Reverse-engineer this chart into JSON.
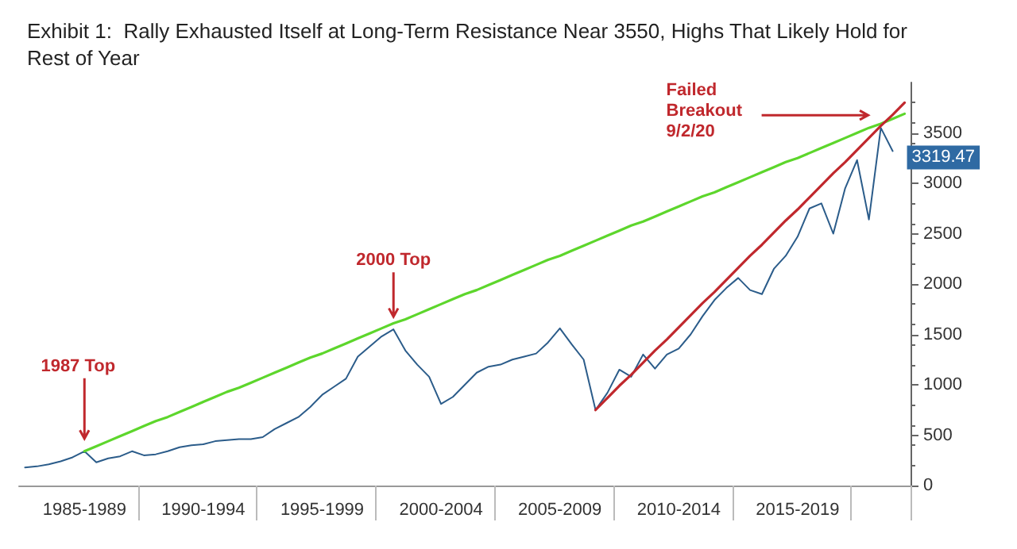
{
  "chart_data": {
    "type": "line",
    "title": "Exhibit 1:  Rally Exhausted Itself at Long-Term Resistance Near 3550, Highs That Likely Hold for Rest of Year",
    "categories": [
      null,
      null,
      null,
      null,
      null,
      "1985-1989",
      null,
      null,
      null,
      null,
      null,
      null,
      null,
      null,
      null,
      "1990-1994",
      null,
      null,
      null,
      null,
      null,
      null,
      null,
      null,
      null,
      "1995-1999",
      null,
      null,
      null,
      null,
      null,
      null,
      null,
      null,
      null,
      "2000-2004",
      null,
      null,
      null,
      null,
      null,
      null,
      null,
      null,
      null,
      "2005-2009",
      null,
      null,
      null,
      null,
      null,
      null,
      null,
      null,
      null,
      "2010-2014",
      null,
      null,
      null,
      null,
      null,
      null,
      null,
      null,
      null,
      "2015-2019",
      null,
      null,
      null,
      null,
      null,
      null,
      null,
      null,
      null
    ],
    "series": [
      {
        "color": "#2b5c8a",
        "values": [
          180,
          190,
          210,
          240,
          280,
          340,
          230,
          270,
          290,
          340,
          300,
          310,
          340,
          380,
          400,
          410,
          440,
          450,
          460,
          460,
          480,
          560,
          620,
          680,
          780,
          900,
          980,
          1060,
          1280,
          1380,
          1480,
          1550,
          1340,
          1200,
          1080,
          810,
          880,
          1000,
          1120,
          1180,
          1200,
          1250,
          1280,
          1310,
          1420,
          1560,
          1400,
          1250,
          750,
          920,
          1150,
          1080,
          1300,
          1160,
          1300,
          1360,
          1500,
          1680,
          1840,
          1960,
          2060,
          1940,
          1900,
          2150,
          2280,
          2470,
          2750,
          2800,
          2500,
          2950,
          3230,
          2640,
          3550,
          3319.47,
          null
        ],
        "value_labels": [
          null,
          null,
          null,
          null,
          null,
          null,
          null,
          null,
          null,
          null,
          null,
          null,
          null,
          null,
          null,
          null,
          null,
          null,
          null,
          null,
          null,
          null,
          null,
          null,
          null,
          null,
          null,
          null,
          null,
          null,
          null,
          null,
          null,
          null,
          null,
          null,
          null,
          null,
          null,
          null,
          null,
          null,
          null,
          null,
          null,
          null,
          null,
          null,
          null,
          null,
          null,
          null,
          null,
          null,
          null,
          null,
          null,
          null,
          null,
          null,
          null,
          null,
          null,
          null,
          null,
          null,
          null,
          null,
          null,
          null,
          null,
          null,
          null,
          "3319.47",
          null
        ]
      },
      {
        "color": "#5dd62c",
        "values": [
          null,
          null,
          null,
          null,
          null,
          340,
          390,
          440,
          490,
          540,
          590,
          640,
          680,
          730,
          780,
          830,
          880,
          930,
          970,
          1020,
          1070,
          1120,
          1170,
          1220,
          1270,
          1310,
          1360,
          1410,
          1460,
          1510,
          1560,
          1610,
          1650,
          1700,
          1750,
          1800,
          1850,
          1900,
          1940,
          1990,
          2040,
          2090,
          2140,
          2190,
          2240,
          2280,
          2330,
          2380,
          2430,
          2480,
          2530,
          2580,
          2620,
          2670,
          2720,
          2770,
          2820,
          2870,
          2910,
          2960,
          3010,
          3060,
          3110,
          3160,
          3210,
          3250,
          3300,
          3350,
          3400,
          3450,
          3500,
          3550,
          3590,
          3640,
          3690
        ]
      },
      {
        "color": "#c0282d",
        "values": [
          null,
          null,
          null,
          null,
          null,
          null,
          null,
          null,
          null,
          null,
          null,
          null,
          null,
          null,
          null,
          null,
          null,
          null,
          null,
          null,
          null,
          null,
          null,
          null,
          null,
          null,
          null,
          null,
          null,
          null,
          null,
          null,
          null,
          null,
          null,
          null,
          null,
          null,
          null,
          null,
          null,
          null,
          null,
          null,
          null,
          null,
          null,
          null,
          750,
          870,
          990,
          1100,
          1220,
          1340,
          1450,
          1570,
          1690,
          1810,
          1920,
          2040,
          2160,
          2280,
          2390,
          2510,
          2630,
          2740,
          2860,
          2980,
          3100,
          3210,
          3330,
          3450,
          3570,
          3680,
          3800
        ]
      }
    ],
    "ylim": [
      0,
      4000
    ],
    "yticks": [
      0,
      500,
      1000,
      1500,
      2000,
      2500,
      3000,
      3500
    ],
    "annotations": [
      "1987 Top",
      "2000 Top",
      "Failed\nBreakout\n9/2/20"
    ],
    "grid": false,
    "marker": "none",
    "line_style": "solid"
  }
}
